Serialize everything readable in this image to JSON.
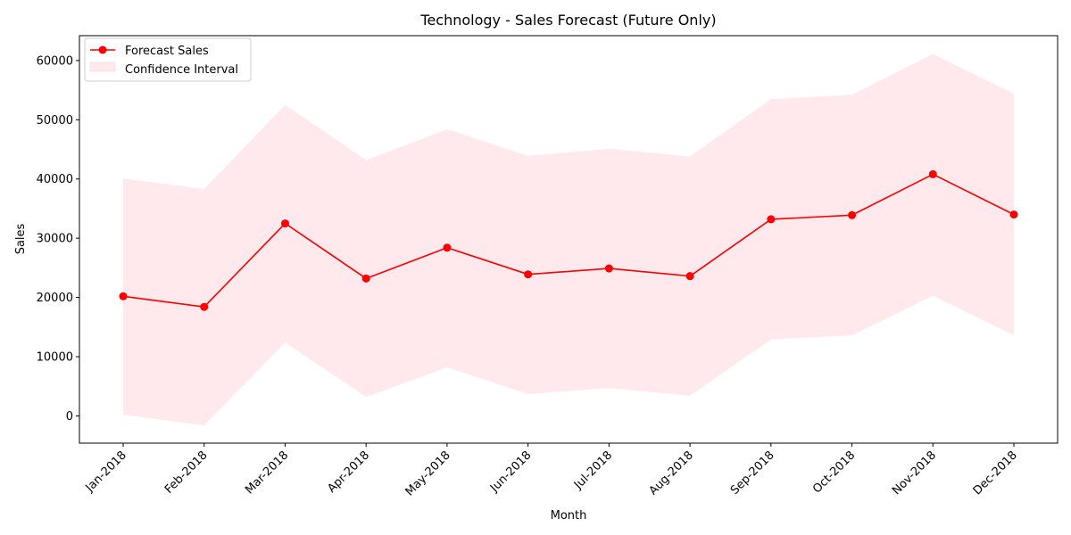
{
  "chart_data": {
    "type": "line",
    "title": "Technology - Sales Forecast (Future Only)",
    "xlabel": "Month",
    "ylabel": "Sales",
    "categories": [
      "Jan-2018",
      "Feb-2018",
      "Mar-2018",
      "Apr-2018",
      "May-2018",
      "Jun-2018",
      "Jul-2018",
      "Aug-2018",
      "Sep-2018",
      "Oct-2018",
      "Nov-2018",
      "Dec-2018"
    ],
    "series": [
      {
        "name": "Forecast Sales",
        "color": "#ff0000",
        "marker": "circle",
        "values": [
          20200,
          18400,
          32500,
          23200,
          28400,
          23900,
          24900,
          23600,
          33200,
          33900,
          40800,
          34000
        ]
      }
    ],
    "confidence_interval": {
      "name": "Confidence Interval",
      "color": "#ffc0cb",
      "lower": [
        200,
        -1600,
        12400,
        3200,
        8200,
        3700,
        4700,
        3400,
        12900,
        13600,
        20300,
        13600
      ],
      "upper": [
        40100,
        38300,
        52500,
        43200,
        48400,
        43900,
        45100,
        43800,
        53500,
        54200,
        61100,
        54400
      ]
    },
    "ylim": [
      -4600,
      64200
    ],
    "yticks": [
      0,
      10000,
      20000,
      30000,
      40000,
      50000,
      60000
    ],
    "grid": false,
    "legend_position": "top-left",
    "x_tick_rotation": 45
  }
}
